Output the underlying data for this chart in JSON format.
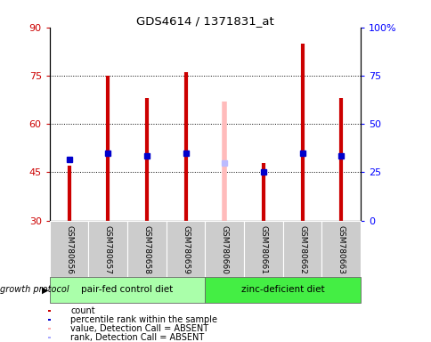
{
  "title": "GDS4614 / 1371831_at",
  "samples": [
    "GSM780656",
    "GSM780657",
    "GSM780658",
    "GSM780659",
    "GSM780660",
    "GSM780661",
    "GSM780662",
    "GSM780663"
  ],
  "count_values": [
    47,
    75,
    68,
    76,
    null,
    48,
    85,
    68
  ],
  "rank_values": [
    49,
    51,
    50,
    51,
    null,
    45,
    51,
    50
  ],
  "absent_value": [
    null,
    null,
    null,
    null,
    67,
    null,
    null,
    null
  ],
  "absent_rank": [
    null,
    null,
    null,
    null,
    48,
    null,
    null,
    null
  ],
  "ylim_left": [
    30,
    90
  ],
  "ylim_right": [
    0,
    100
  ],
  "yticks_left": [
    30,
    45,
    60,
    75,
    90
  ],
  "yticks_right": [
    0,
    25,
    50,
    75,
    100
  ],
  "ytick_labels_right": [
    "0",
    "25",
    "50",
    "75",
    "100%"
  ],
  "group1_label": "pair-fed control diet",
  "group2_label": "zinc-deficient diet",
  "group1_indices": [
    0,
    1,
    2,
    3
  ],
  "group2_indices": [
    4,
    5,
    6,
    7
  ],
  "protocol_label": "growth protocol",
  "bar_bottom": 30,
  "rank_marker_size": 4,
  "line_width": 3,
  "absent_line_color": "#ffbbbb",
  "absent_rank_color": "#bbbbff",
  "count_color": "#cc0000",
  "rank_color": "#0000cc",
  "legend_labels": [
    "count",
    "percentile rank within the sample",
    "value, Detection Call = ABSENT",
    "rank, Detection Call = ABSENT"
  ],
  "legend_colors": [
    "#cc0000",
    "#0000cc",
    "#ffaaaa",
    "#aaaaff"
  ],
  "group1_bg": "#aaffaa",
  "group2_bg": "#44ee44",
  "sample_bg": "#cccccc",
  "gridline_values": [
    45,
    60,
    75
  ]
}
